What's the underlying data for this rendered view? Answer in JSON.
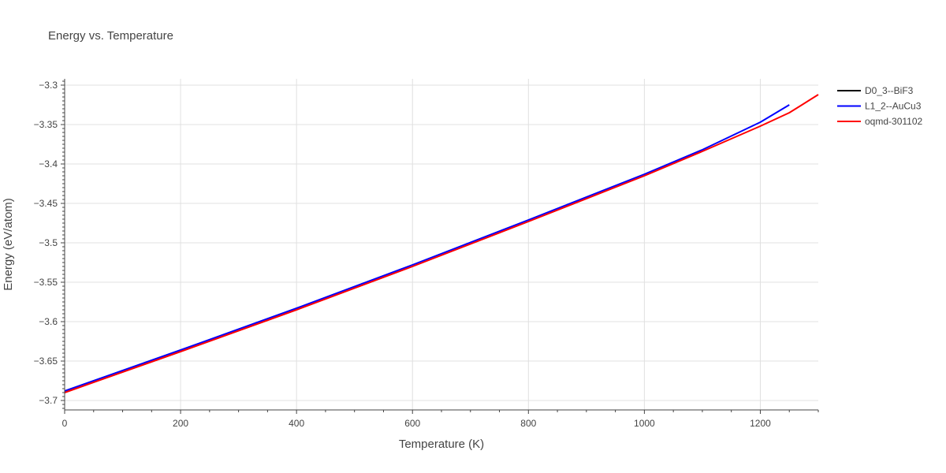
{
  "chart_data": {
    "type": "line",
    "title": "Energy vs. Temperature",
    "xlabel": "Temperature (K)",
    "ylabel": "Energy (eV/atom)",
    "xlim": [
      0,
      1300
    ],
    "ylim": [
      -3.712,
      -3.292
    ],
    "xticks": [
      0,
      200,
      400,
      600,
      800,
      1000,
      1200
    ],
    "xtick_labels": [
      "0",
      "200",
      "400",
      "600",
      "800",
      "1000",
      "1200"
    ],
    "yticks": [
      -3.7,
      -3.65,
      -3.6,
      -3.55,
      -3.5,
      -3.45,
      -3.4,
      -3.35,
      -3.3
    ],
    "ytick_labels": [
      "−3.7",
      "−3.65",
      "−3.6",
      "−3.55",
      "−3.5",
      "−3.45",
      "−3.4",
      "−3.35",
      "−3.3"
    ],
    "grid": true,
    "legend_position": "top-right",
    "series": [
      {
        "name": "D0_3--BiF3",
        "color": "#000000",
        "x": [],
        "y": []
      },
      {
        "name": "L1_2--AuCu3",
        "color": "#0000ff",
        "x": [
          0,
          200,
          400,
          600,
          800,
          1000,
          1100,
          1200,
          1250
        ],
        "y": [
          -3.688,
          -3.636,
          -3.583,
          -3.528,
          -3.471,
          -3.413,
          -3.382,
          -3.347,
          -3.325
        ]
      },
      {
        "name": "oqmd-301102",
        "color": "#ff0000",
        "x": [
          0,
          200,
          400,
          600,
          800,
          1000,
          1100,
          1200,
          1250,
          1300
        ],
        "y": [
          -3.69,
          -3.638,
          -3.585,
          -3.53,
          -3.473,
          -3.415,
          -3.384,
          -3.352,
          -3.335,
          -3.312
        ]
      }
    ]
  }
}
